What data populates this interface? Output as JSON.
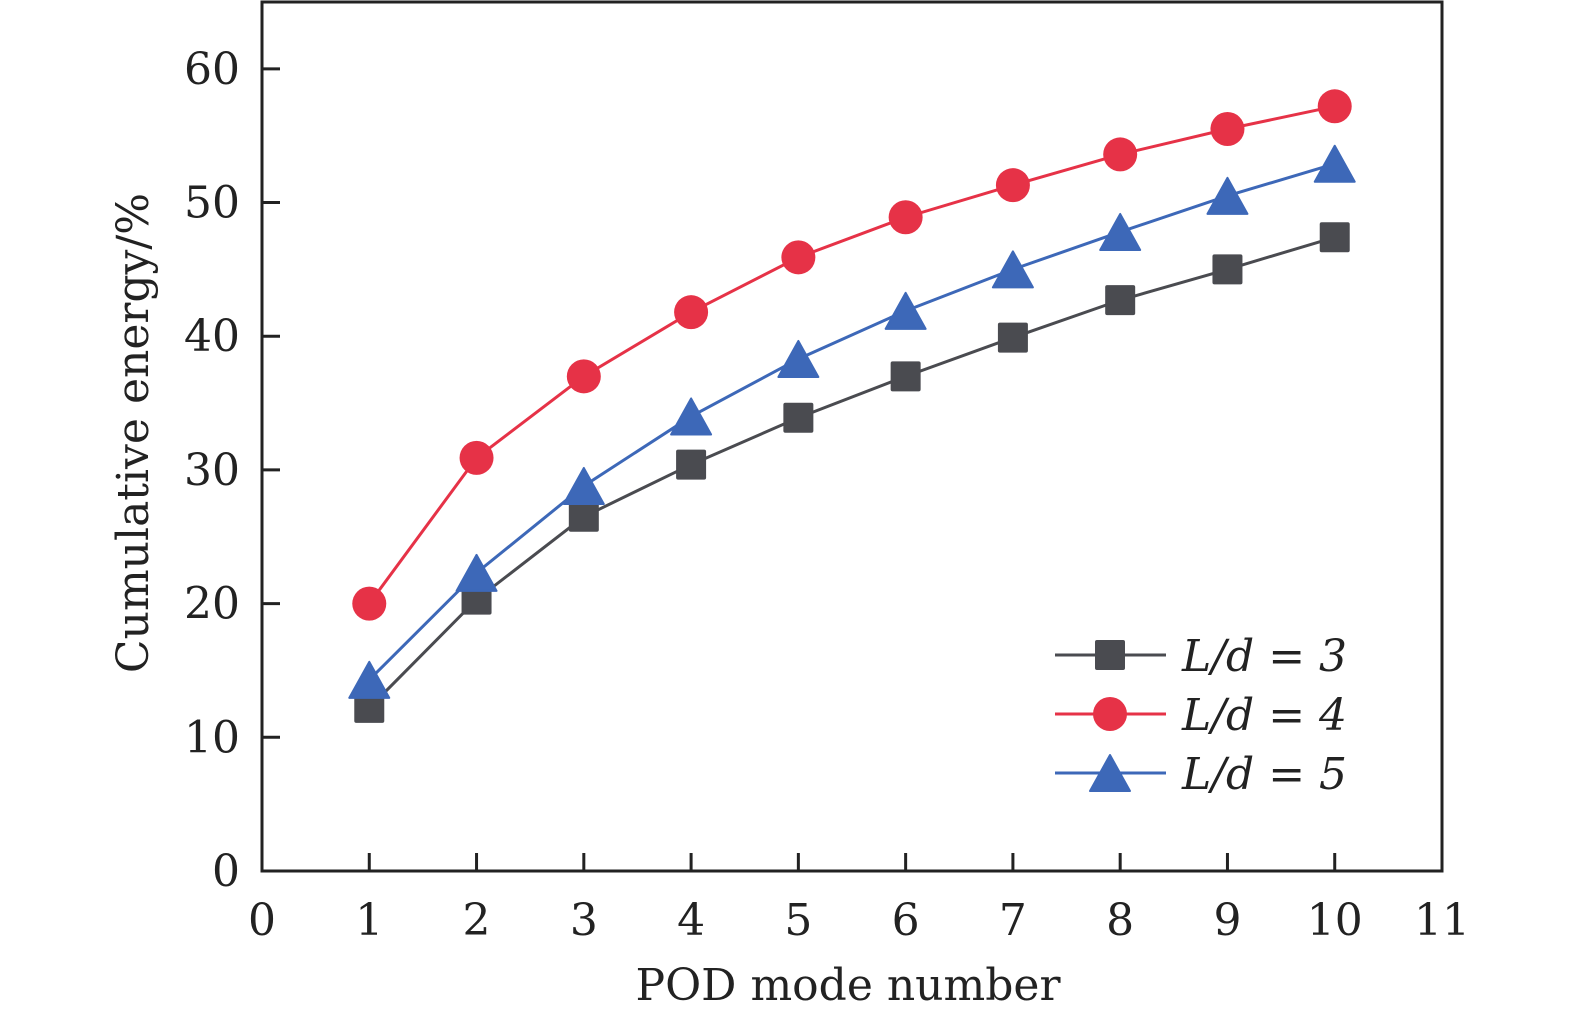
{
  "chart_data": {
    "type": "line",
    "title": "",
    "xlabel": "POD mode number",
    "ylabel": "Cumulative energy/%",
    "xlim": [
      0,
      11
    ],
    "ylim": [
      0,
      65
    ],
    "xticks": [
      "0",
      "1",
      "2",
      "3",
      "4",
      "5",
      "6",
      "7",
      "8",
      "9",
      "10",
      "11"
    ],
    "yticks": [
      "0",
      "10",
      "20",
      "30",
      "40",
      "50",
      "60"
    ],
    "grid": false,
    "legend_position": "bottom-right",
    "x": [
      1,
      2,
      3,
      4,
      5,
      6,
      7,
      8,
      9,
      10
    ],
    "series": [
      {
        "name": "L/d = 3",
        "marker": "square",
        "color": "#4a4b50",
        "values": [
          12.2,
          20.3,
          26.5,
          30.4,
          33.9,
          37.0,
          39.9,
          42.7,
          45.0,
          47.4
        ]
      },
      {
        "name": "L/d = 4",
        "marker": "circle",
        "color": "#e63247",
        "values": [
          20.0,
          30.9,
          37.0,
          41.8,
          45.9,
          48.9,
          51.3,
          53.6,
          55.5,
          57.2
        ]
      },
      {
        "name": "L/d = 5",
        "marker": "triangle",
        "color": "#3d68b8",
        "values": [
          14.3,
          22.3,
          28.8,
          34.0,
          38.3,
          41.9,
          45.0,
          47.8,
          50.5,
          52.9
        ]
      }
    ]
  }
}
